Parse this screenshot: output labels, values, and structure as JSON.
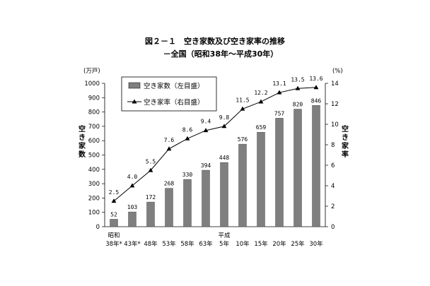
{
  "chart_data": {
    "type": "bar",
    "title": "図２－１　空き家数及び空き家率の推移",
    "subtitle": "－全国（昭和38年～平成30年）",
    "categories": [
      "38年*",
      "43年*",
      "48年",
      "53年",
      "58年",
      "63年",
      "5年",
      "10年",
      "15年",
      "20年",
      "25年",
      "30年"
    ],
    "era_labels": [
      {
        "index": 0,
        "label": "昭和"
      },
      {
        "index": 6,
        "label": "平成"
      }
    ],
    "series": [
      {
        "name": "空き家数（左目盛）",
        "type": "bar",
        "axis": "left",
        "values": [
          52,
          103,
          172,
          268,
          330,
          394,
          448,
          576,
          659,
          757,
          820,
          846
        ]
      },
      {
        "name": "空き家率（右目盛）",
        "type": "line",
        "axis": "right",
        "values": [
          2.5,
          4.0,
          5.5,
          7.6,
          8.6,
          9.4,
          9.8,
          11.5,
          12.2,
          13.1,
          13.5,
          13.6
        ]
      }
    ],
    "y_left": {
      "unit": "(万戸)",
      "label": "空き家数",
      "ylim": [
        0,
        1000
      ],
      "ticks": [
        0,
        100,
        200,
        300,
        400,
        500,
        600,
        700,
        800,
        900,
        1000
      ]
    },
    "y_right": {
      "unit": "(%)",
      "label": "空き家率",
      "ylim": [
        0,
        14
      ],
      "ticks": [
        0,
        2,
        4,
        6,
        8,
        10,
        12,
        14
      ]
    },
    "rate_labels": [
      "2.5",
      "4.0",
      "5.5",
      "7.6",
      "8.6",
      "9.4",
      "9.8",
      "11.5",
      "12.2",
      "13.1",
      "13.5",
      "13.6"
    ],
    "grid": false,
    "legend_position": "top-left",
    "colors": {
      "bar": "#7f7f7f",
      "line": "#000000"
    }
  }
}
